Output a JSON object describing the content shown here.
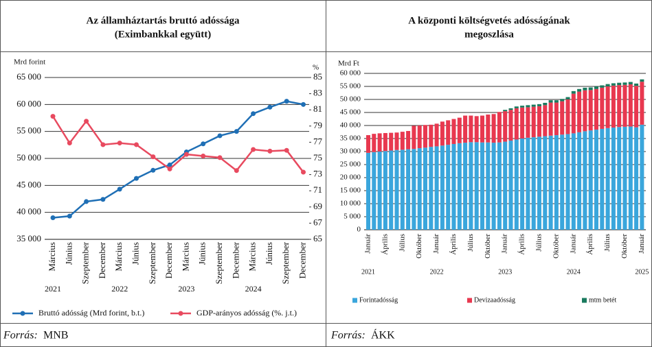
{
  "chart_data": [
    {
      "type": "line",
      "title": [
        "Az államháztartás bruttó adóssága",
        "(Eximbankkal együtt)"
      ],
      "y_label": "Mrd forint",
      "y2_label": "%",
      "categories": [
        "Március",
        "Június",
        "Szeptember",
        "December",
        "Március",
        "Június",
        "Szeptember",
        "December",
        "Március",
        "Június",
        "Szeptember",
        "December",
        "Március",
        "Június",
        "Szeptember",
        "December"
      ],
      "year_labels": [
        "2021",
        "2022",
        "2023",
        "2024"
      ],
      "series": [
        {
          "name": "Bruttó adósság (Mrd forint, b.t.)",
          "color": "#1f6fb5",
          "axis": "y",
          "values": [
            39000,
            39300,
            42000,
            42400,
            44300,
            46300,
            47800,
            48800,
            51200,
            52700,
            54200,
            55000,
            58300,
            59500,
            60600,
            60000
          ]
        },
        {
          "name": "GDP-arányos adósság (%. j.t.)",
          "color": "#e84a5f",
          "axis": "y2",
          "values": [
            80.2,
            76.9,
            79.6,
            76.7,
            76.9,
            76.7,
            75.2,
            73.7,
            75.5,
            75.3,
            75.1,
            73.5,
            76.1,
            75.9,
            76.0,
            73.3
          ]
        }
      ],
      "ylim": [
        35000,
        65000
      ],
      "yticks": [
        {
          "value": 35000,
          "label": "35 000"
        },
        {
          "value": 40000,
          "label": "40 000"
        },
        {
          "value": 45000,
          "label": "45 000"
        },
        {
          "value": 50000,
          "label": "50 000"
        },
        {
          "value": 55000,
          "label": "55 000"
        },
        {
          "value": 60000,
          "label": "60 000"
        },
        {
          "value": 65000,
          "label": "65 000"
        }
      ],
      "y2lim": [
        65,
        85
      ],
      "y2ticks": [
        65,
        67,
        69,
        71,
        73,
        75,
        77,
        79,
        81,
        83,
        85
      ],
      "grid": true,
      "source_label": "Forrás:",
      "source": "MNB"
    },
    {
      "type": "stacked_bar",
      "title": [
        "A központi költségvetés adósságának",
        "megoszlása"
      ],
      "y_label": "Mrd Ft",
      "categories": [
        "Január",
        null,
        null,
        "Április",
        null,
        null,
        "Július",
        null,
        null,
        "Október",
        null,
        null,
        "Január",
        null,
        null,
        "Április",
        null,
        null,
        "Július",
        null,
        null,
        "Október",
        null,
        null,
        "Január",
        null,
        null,
        "Április",
        null,
        null,
        "Július",
        null,
        null,
        "Október",
        null,
        null,
        "Január",
        null,
        null,
        "Április",
        null,
        null,
        "Július",
        null,
        null,
        "Október",
        null,
        null,
        "Január"
      ],
      "year_labels": [
        "2021",
        "2022",
        "2023",
        "2024",
        "2025"
      ],
      "series": [
        {
          "name": "Forintadósság",
          "color": "#3aa6dc",
          "values": [
            29500,
            29800,
            30000,
            30200,
            30400,
            30600,
            30700,
            30900,
            31000,
            31300,
            31500,
            31800,
            32000,
            32300,
            32600,
            32900,
            33200,
            33400,
            33600,
            33600,
            33500,
            33500,
            33400,
            33500,
            33800,
            34200,
            34600,
            35000,
            35300,
            35500,
            35700,
            35900,
            36100,
            36300,
            36500,
            36700,
            37000,
            37400,
            37800,
            38100,
            38400,
            38700,
            39000,
            39200,
            39400,
            39500,
            39600,
            39300,
            40300
          ]
        },
        {
          "name": "Devizaadósság",
          "color": "#e8384f",
          "values": [
            6800,
            7000,
            7000,
            6900,
            6800,
            6700,
            6900,
            7000,
            8900,
            8700,
            8700,
            8500,
            8700,
            9200,
            9400,
            9600,
            9800,
            10400,
            10200,
            10000,
            10300,
            10700,
            11000,
            11700,
            11700,
            11800,
            12000,
            11900,
            11700,
            11700,
            11700,
            11900,
            12700,
            12500,
            12800,
            13300,
            15200,
            15600,
            15700,
            15500,
            15600,
            15800,
            16000,
            16100,
            16100,
            16100,
            16200,
            15900,
            16500
          ]
        },
        {
          "name": "mtm betét",
          "color": "#1a7a5e",
          "values": [
            0,
            0,
            0,
            0,
            0,
            0,
            0,
            0,
            0,
            0,
            0,
            0,
            0,
            0,
            0,
            0,
            0,
            0,
            0,
            0,
            0,
            0,
            0,
            0,
            500,
            600,
            700,
            700,
            800,
            800,
            800,
            900,
            900,
            900,
            900,
            900,
            1000,
            1000,
            1000,
            1000,
            1000,
            900,
            900,
            900,
            900,
            900,
            900,
            900,
            900
          ]
        }
      ],
      "ylim": [
        0,
        60000
      ],
      "yticks": [
        0,
        {
          "value": 5000,
          "label": "5 000"
        },
        {
          "value": 10000,
          "label": "10 000"
        },
        {
          "value": 15000,
          "label": "15 000"
        },
        {
          "value": 20000,
          "label": "20 000"
        },
        {
          "value": 25000,
          "label": "25 000"
        },
        {
          "value": 30000,
          "label": "30 000"
        },
        {
          "value": 35000,
          "label": "35 000"
        },
        {
          "value": 40000,
          "label": "40 000"
        },
        {
          "value": 45000,
          "label": "45 000"
        },
        {
          "value": 50000,
          "label": "50 000"
        },
        {
          "value": 55000,
          "label": "55 000"
        },
        {
          "value": 60000,
          "label": "60 000"
        }
      ],
      "grid": true,
      "source_label": "Forrás:",
      "source": "ÁKK"
    }
  ]
}
